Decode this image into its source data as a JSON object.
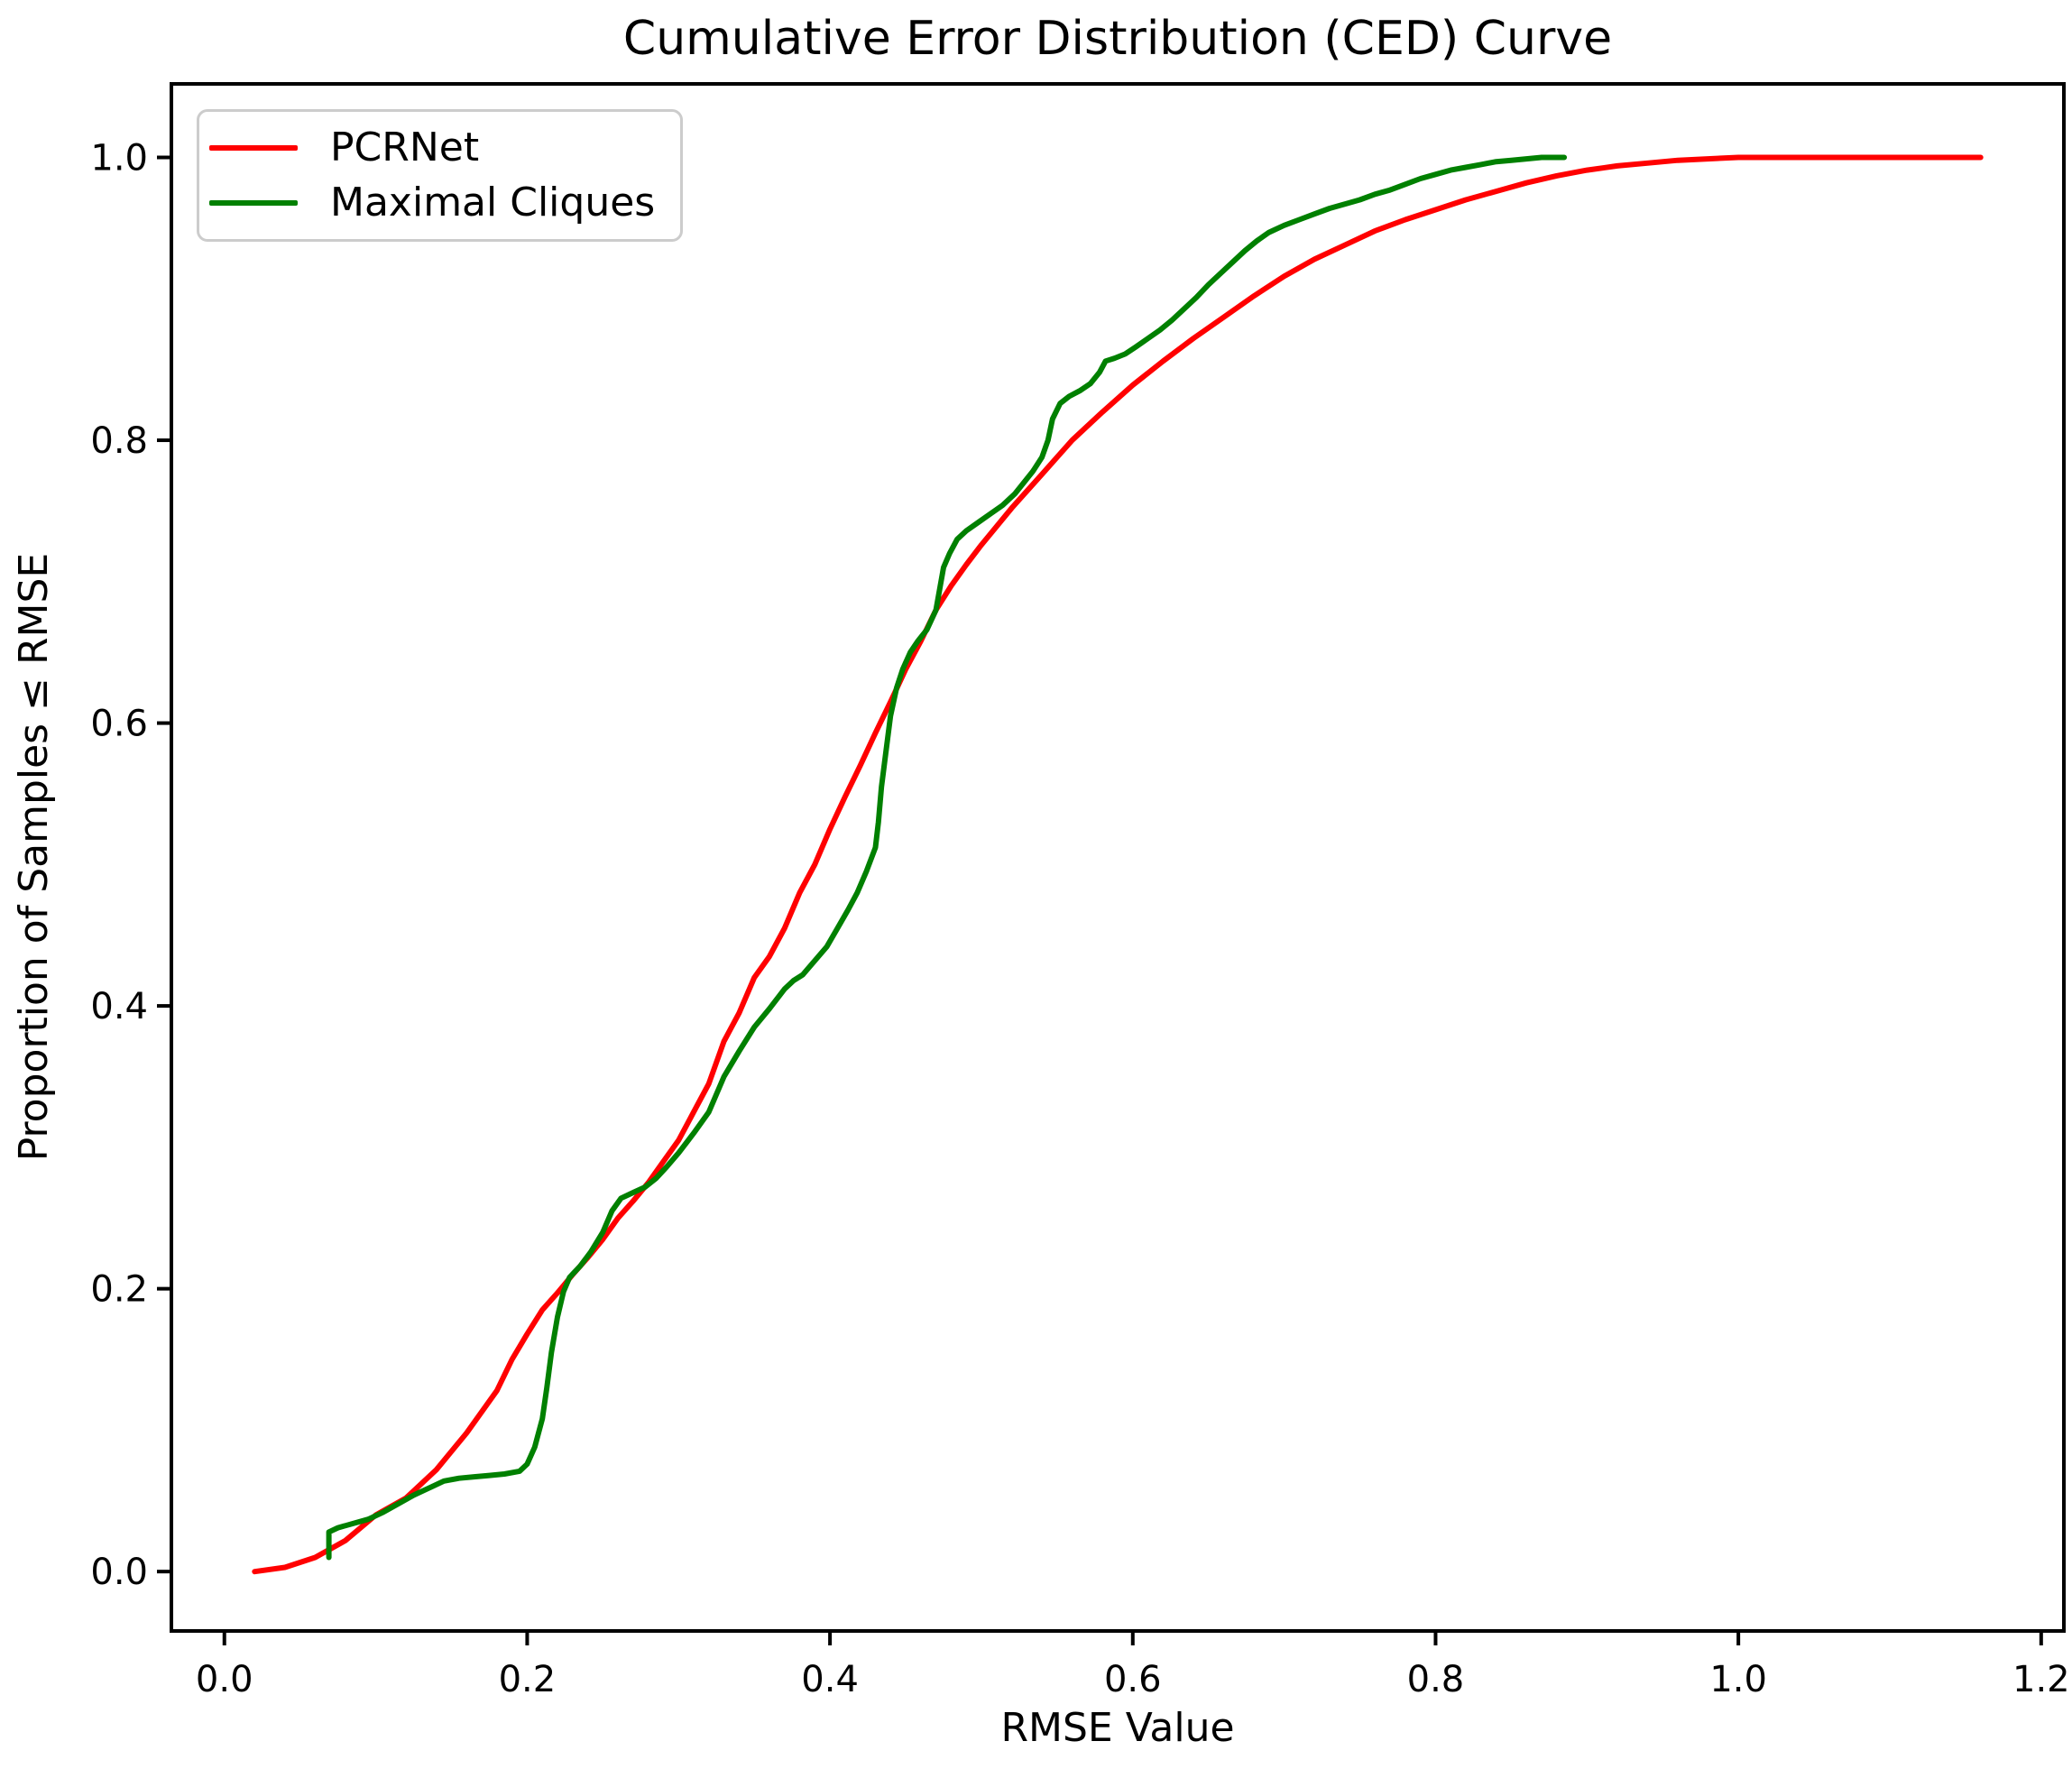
{
  "title": "Cumulative Error Distribution (CED) Curve",
  "chart_data": {
    "type": "line",
    "title": "Cumulative Error Distribution (CED) Curve",
    "xlabel": "RMSE Value",
    "ylabel": "Proportion of Samples ≤ RMSE",
    "xlim": [
      -0.035,
      1.215
    ],
    "ylim": [
      -0.042,
      1.052
    ],
    "x_ticks": [
      0.0,
      0.2,
      0.4,
      0.6,
      0.8,
      1.0,
      1.2
    ],
    "y_ticks": [
      0.0,
      0.2,
      0.4,
      0.6,
      0.8,
      1.0
    ],
    "grid": false,
    "legend_position": "upper-left",
    "series": [
      {
        "name": "PCRNet",
        "color": "#ff0000",
        "x": [
          0.02,
          0.04,
          0.06,
          0.08,
          0.1,
          0.12,
          0.14,
          0.16,
          0.18,
          0.19,
          0.2,
          0.21,
          0.22,
          0.23,
          0.24,
          0.25,
          0.26,
          0.27,
          0.28,
          0.29,
          0.3,
          0.31,
          0.32,
          0.33,
          0.34,
          0.35,
          0.36,
          0.37,
          0.38,
          0.39,
          0.4,
          0.41,
          0.42,
          0.43,
          0.44,
          0.45,
          0.46,
          0.47,
          0.48,
          0.49,
          0.5,
          0.52,
          0.54,
          0.56,
          0.58,
          0.6,
          0.62,
          0.64,
          0.66,
          0.68,
          0.7,
          0.72,
          0.74,
          0.76,
          0.78,
          0.8,
          0.82,
          0.84,
          0.86,
          0.88,
          0.9,
          0.92,
          0.94,
          0.96,
          1.0,
          1.05,
          1.1,
          1.16
        ],
        "y": [
          0.0,
          0.003,
          0.01,
          0.022,
          0.04,
          0.052,
          0.072,
          0.098,
          0.128,
          0.15,
          0.168,
          0.185,
          0.197,
          0.21,
          0.222,
          0.235,
          0.25,
          0.262,
          0.275,
          0.29,
          0.305,
          0.325,
          0.345,
          0.375,
          0.395,
          0.42,
          0.435,
          0.455,
          0.48,
          0.5,
          0.525,
          0.548,
          0.57,
          0.593,
          0.615,
          0.638,
          0.658,
          0.68,
          0.697,
          0.712,
          0.726,
          0.752,
          0.776,
          0.8,
          0.82,
          0.839,
          0.856,
          0.872,
          0.887,
          0.902,
          0.916,
          0.928,
          0.938,
          0.948,
          0.956,
          0.963,
          0.97,
          0.976,
          0.982,
          0.987,
          0.991,
          0.994,
          0.996,
          0.998,
          1.0,
          1.0,
          1.0,
          1.0
        ]
      },
      {
        "name": "Maximal Cliques",
        "color": "#008000",
        "x": [
          0.069,
          0.069,
          0.075,
          0.085,
          0.095,
          0.105,
          0.115,
          0.125,
          0.135,
          0.145,
          0.155,
          0.165,
          0.175,
          0.185,
          0.195,
          0.2,
          0.205,
          0.21,
          0.213,
          0.216,
          0.22,
          0.224,
          0.228,
          0.235,
          0.242,
          0.25,
          0.256,
          0.262,
          0.27,
          0.278,
          0.285,
          0.292,
          0.3,
          0.31,
          0.32,
          0.33,
          0.34,
          0.35,
          0.36,
          0.37,
          0.376,
          0.382,
          0.39,
          0.398,
          0.405,
          0.412,
          0.418,
          0.424,
          0.43,
          0.432,
          0.434,
          0.437,
          0.44,
          0.444,
          0.448,
          0.453,
          0.458,
          0.464,
          0.47,
          0.475,
          0.479,
          0.484,
          0.49,
          0.498,
          0.506,
          0.514,
          0.522,
          0.528,
          0.534,
          0.54,
          0.544,
          0.547,
          0.552,
          0.558,
          0.565,
          0.572,
          0.578,
          0.582,
          0.588,
          0.595,
          0.602,
          0.61,
          0.618,
          0.626,
          0.634,
          0.642,
          0.65,
          0.658,
          0.666,
          0.674,
          0.682,
          0.69,
          0.7,
          0.71,
          0.72,
          0.73,
          0.74,
          0.75,
          0.76,
          0.77,
          0.78,
          0.79,
          0.8,
          0.81,
          0.82,
          0.83,
          0.84,
          0.85,
          0.86,
          0.87,
          0.88,
          0.885
        ],
        "y": [
          0.01,
          0.028,
          0.031,
          0.034,
          0.037,
          0.042,
          0.048,
          0.054,
          0.059,
          0.064,
          0.066,
          0.067,
          0.068,
          0.069,
          0.071,
          0.076,
          0.088,
          0.108,
          0.13,
          0.155,
          0.18,
          0.198,
          0.208,
          0.216,
          0.226,
          0.24,
          0.255,
          0.264,
          0.268,
          0.272,
          0.278,
          0.286,
          0.296,
          0.31,
          0.325,
          0.35,
          0.368,
          0.385,
          0.398,
          0.412,
          0.418,
          0.422,
          0.432,
          0.442,
          0.455,
          0.468,
          0.48,
          0.495,
          0.512,
          0.53,
          0.555,
          0.58,
          0.605,
          0.625,
          0.638,
          0.65,
          0.658,
          0.666,
          0.68,
          0.71,
          0.72,
          0.73,
          0.736,
          0.742,
          0.748,
          0.754,
          0.762,
          0.77,
          0.778,
          0.788,
          0.8,
          0.815,
          0.826,
          0.831,
          0.835,
          0.84,
          0.848,
          0.856,
          0.858,
          0.861,
          0.866,
          0.872,
          0.878,
          0.885,
          0.893,
          0.901,
          0.91,
          0.918,
          0.926,
          0.934,
          0.941,
          0.947,
          0.952,
          0.956,
          0.96,
          0.964,
          0.967,
          0.97,
          0.974,
          0.977,
          0.981,
          0.985,
          0.988,
          0.991,
          0.993,
          0.995,
          0.997,
          0.998,
          0.999,
          1.0,
          1.0,
          1.0
        ]
      }
    ]
  },
  "legend": {
    "items": [
      {
        "label": "PCRNet",
        "color": "#ff0000"
      },
      {
        "label": "Maximal Cliques",
        "color": "#008000"
      }
    ]
  }
}
